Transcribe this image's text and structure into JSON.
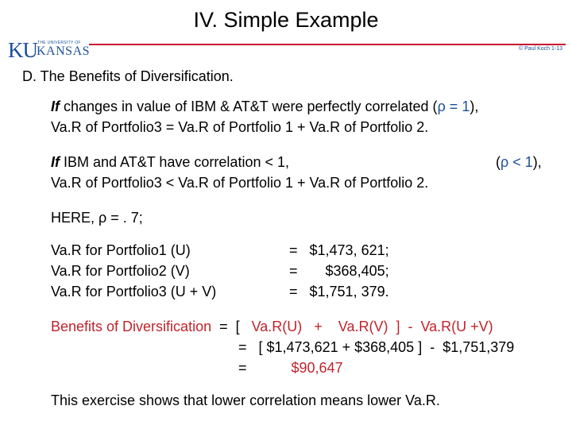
{
  "title": "IV.  Simple Example",
  "logo": {
    "ku": "KU",
    "small": "THE UNIVERSITY OF",
    "name": "KANSAS"
  },
  "copyright": "© Paul Koch 1-13",
  "heading": "D.   The Benefits of Diversification.",
  "p1": {
    "line1_if": "If",
    "line1_text": " changes in value of  IBM  &  AT&T  were perfectly correlated  (",
    "line1_rho": "ρ = 1",
    "line1_end": "),",
    "line2": "Va.R  of  Portfolio3  =  Va.R of Portfolio 1  +  Va.R of Portfolio 2."
  },
  "p2": {
    "line1_if": "If",
    "line1_text": "  IBM  and  AT&T  have correlation < 1,",
    "line1_rho_open": "(",
    "line1_rho": "ρ < 1",
    "line1_rho_close": "),",
    "line2": "Va.R  of  Portfolio3  <  Va.R of Portfolio 1  +  Va.R of Portfolio 2."
  },
  "here": "HERE,  ρ = . 7;",
  "var_list": [
    {
      "label": "Va.R  for  Portfolio1  (U)",
      "value": "  =   $1,473, 621;"
    },
    {
      "label": "Va.R  for  Portfolio2  (V)",
      "value": "  =       $368,405;"
    },
    {
      "label": "Va.R  for  Portfolio3  (U + V)",
      "value": "  =   $1,751, 379."
    }
  ],
  "benefits": {
    "label": "Benefits of Diversification",
    "line1_eq": "  =  [   ",
    "line1_expr": "Va.R(U)   +    Va.R(V)  ]  -  Va.R(U +V)",
    "line2": "=   [ $1,473,621 + $368,405 ]  -  $1,751,379",
    "line3_eq": "=",
    "line3_val": "$90,647"
  },
  "conclusion": "This exercise shows that  lower correlation  means  lower Va.R."
}
